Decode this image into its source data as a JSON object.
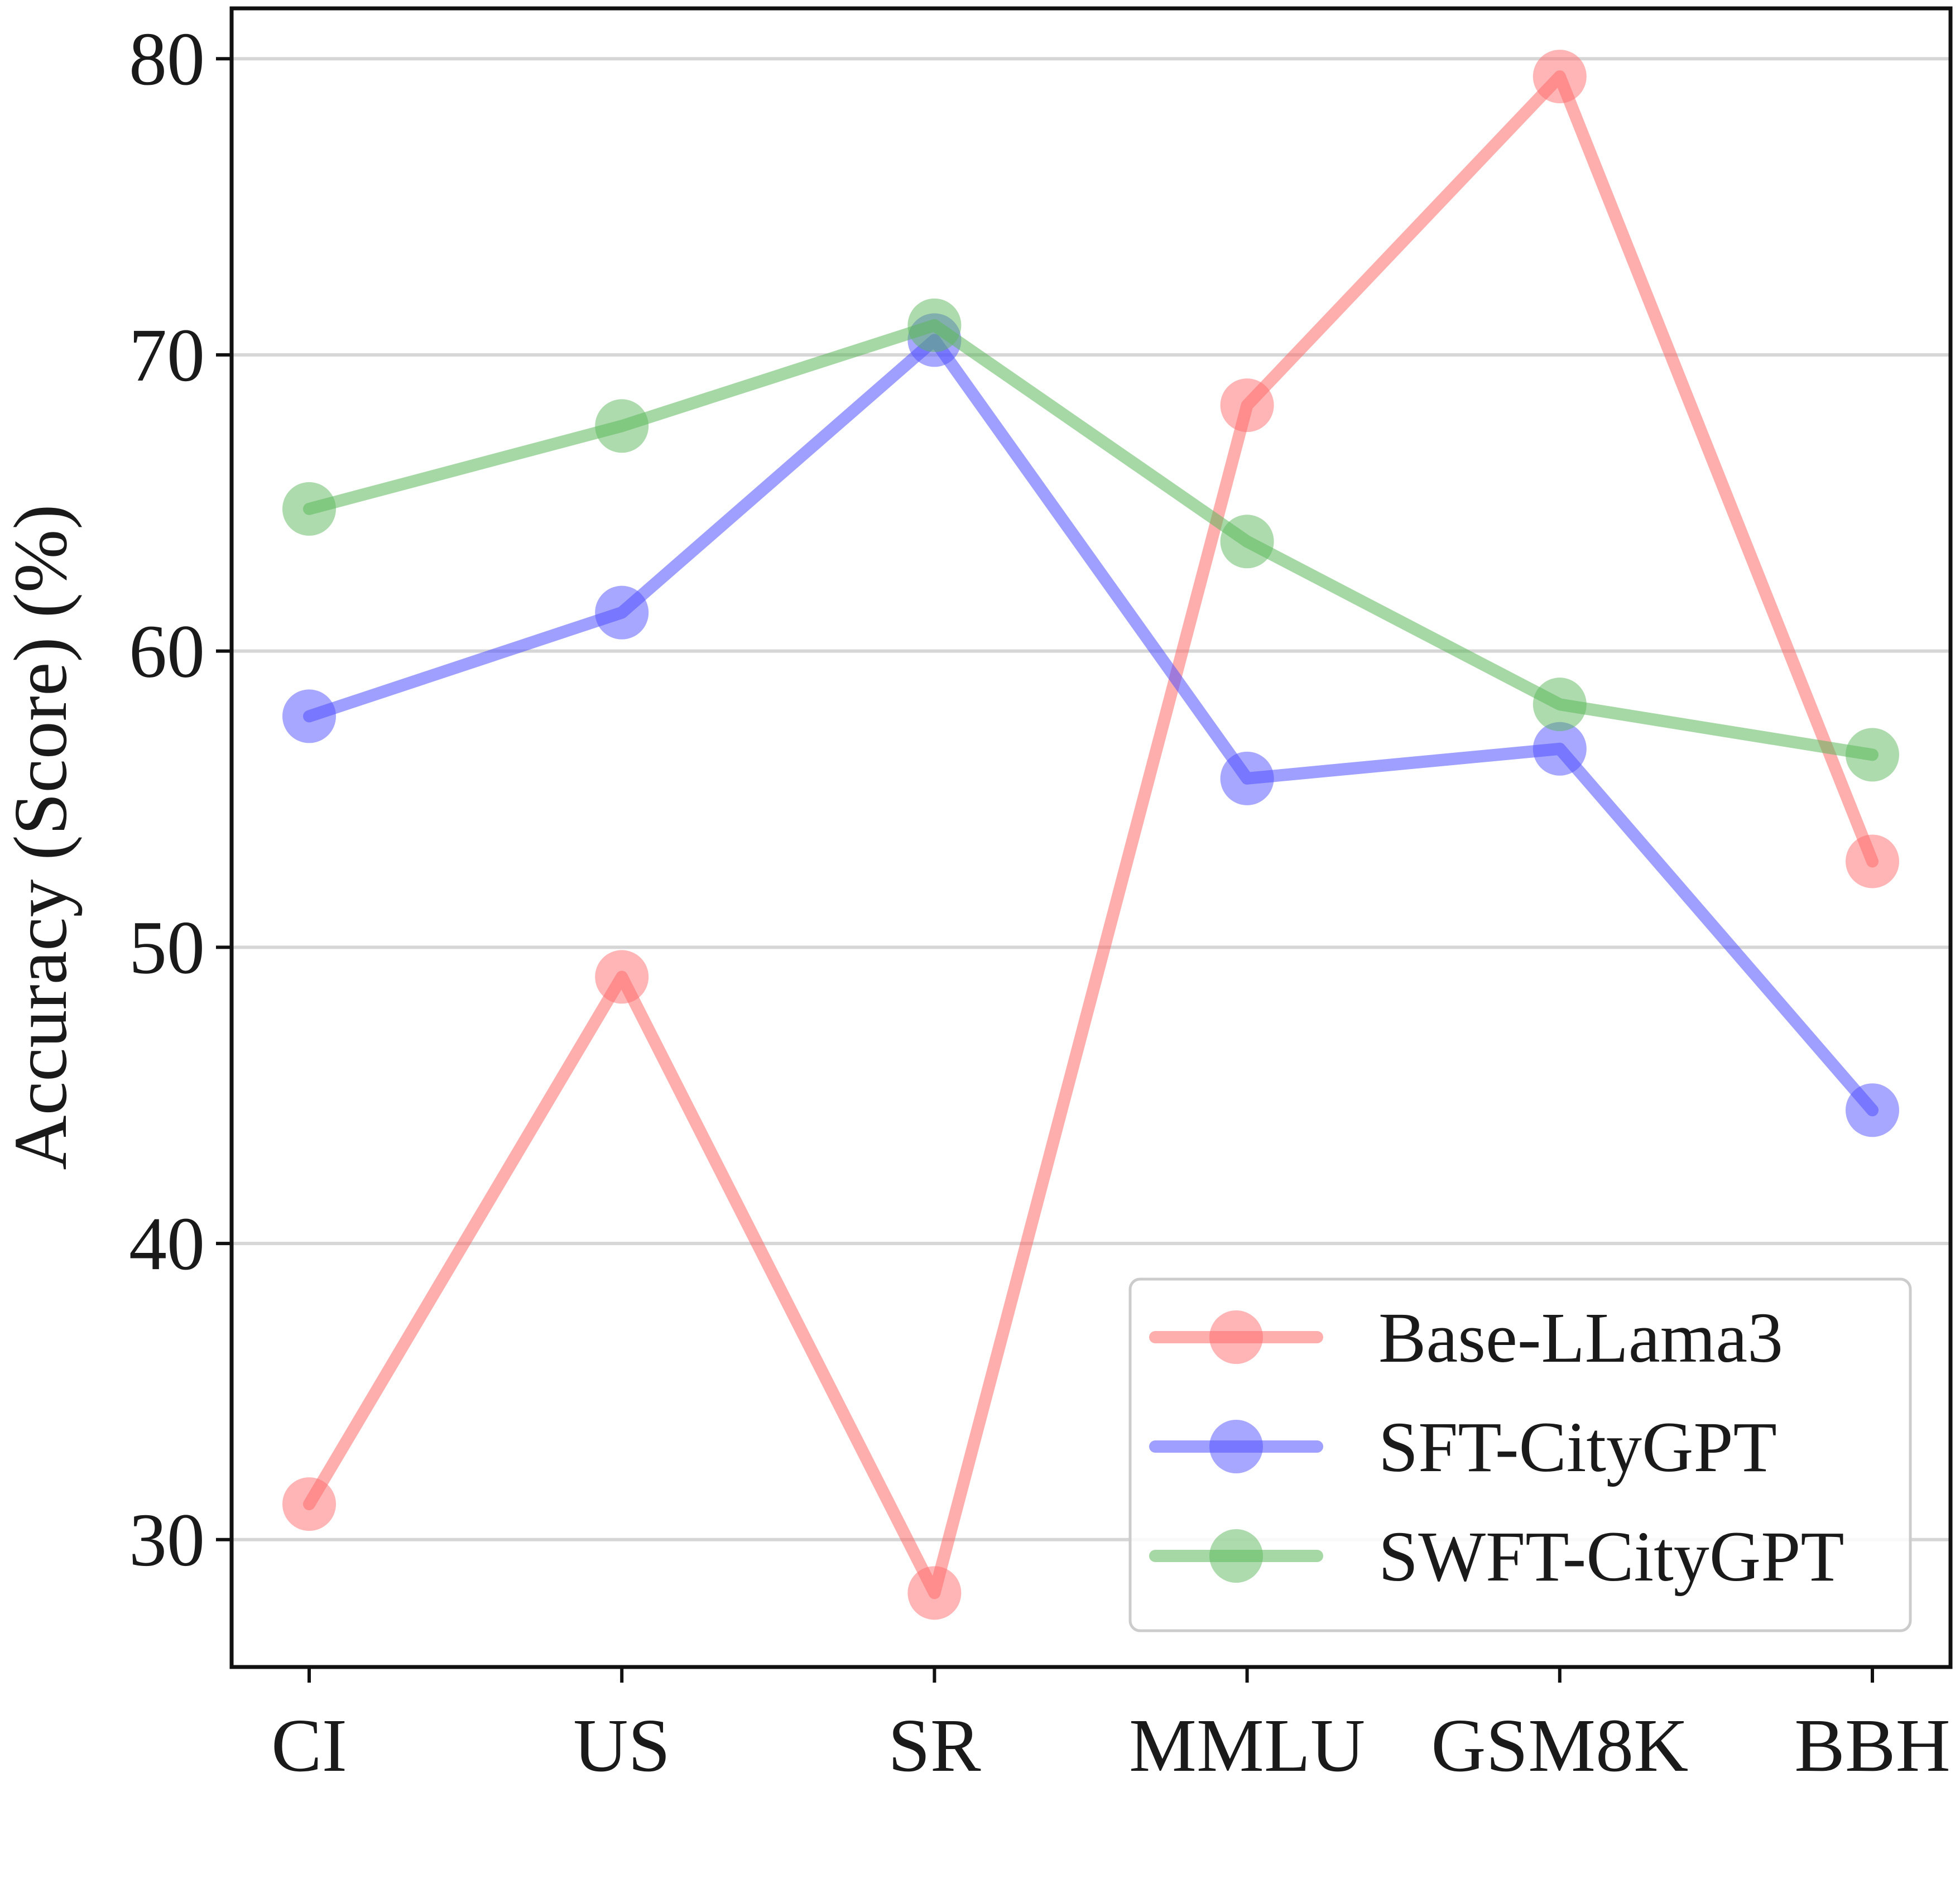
{
  "chart_data": {
    "type": "line",
    "title": "",
    "xlabel": "",
    "ylabel": "Accuracy (Score) (%)",
    "categories": [
      "CI",
      "US",
      "SR",
      "MMLU",
      "GSM8K",
      "BBH"
    ],
    "ylim": [
      25.7,
      81.7
    ],
    "yticks": [
      30,
      40,
      50,
      60,
      70,
      80
    ],
    "ytick_labels": [
      "30",
      "40",
      "50",
      "60",
      "70",
      "80"
    ],
    "grid": "horizontal",
    "legend_position": "lower-right",
    "series": [
      {
        "name": "Base-LLama3",
        "color": "#ff6b6b",
        "values": [
          31.2,
          49.0,
          28.2,
          68.3,
          79.4,
          52.9
        ]
      },
      {
        "name": "SFT-CityGPT",
        "color": "#5050ff",
        "values": [
          57.8,
          61.3,
          70.5,
          55.7,
          56.7,
          44.5
        ]
      },
      {
        "name": "SWFT-CityGPT",
        "color": "#5cb85c",
        "values": [
          64.8,
          67.6,
          71.0,
          63.7,
          58.2,
          56.5
        ]
      }
    ]
  }
}
